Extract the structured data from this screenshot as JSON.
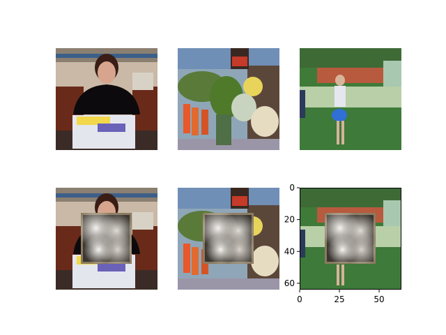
{
  "chart_data": {
    "type": "image-grid",
    "rows": 2,
    "cols": 3,
    "panels": [
      {
        "row": 0,
        "col": 0,
        "subject": "woman-with-cake",
        "occluded": false,
        "axes_visible": false
      },
      {
        "row": 0,
        "col": 1,
        "subject": "vegetables",
        "occluded": false,
        "axes_visible": false
      },
      {
        "row": 0,
        "col": 2,
        "subject": "child-in-park",
        "occluded": false,
        "axes_visible": false
      },
      {
        "row": 1,
        "col": 0,
        "subject": "woman-with-cake",
        "occluded": true,
        "axes_visible": false
      },
      {
        "row": 1,
        "col": 1,
        "subject": "vegetables",
        "occluded": true,
        "axes_visible": false
      },
      {
        "row": 1,
        "col": 2,
        "subject": "child-in-park",
        "occluded": true,
        "axes_visible": true
      }
    ],
    "image_size": [
      64,
      64
    ],
    "occlusion_patch": {
      "x": [
        16,
        48
      ],
      "y": [
        16,
        48
      ]
    },
    "xlim": [
      0,
      64
    ],
    "ylim": [
      64,
      0
    ],
    "xticks": [
      0,
      25,
      50
    ],
    "yticks": [
      0,
      20,
      40,
      60
    ],
    "xtick_labels": [
      "0",
      "25",
      "50"
    ],
    "ytick_labels": [
      "0",
      "20",
      "40",
      "60"
    ],
    "title": "",
    "xlabel": "",
    "ylabel": ""
  },
  "colors": {
    "axis": "#000000",
    "patch_dark": "#3a3530",
    "patch_light": "#e8e6e2",
    "patch_border": "#8a7a60"
  }
}
